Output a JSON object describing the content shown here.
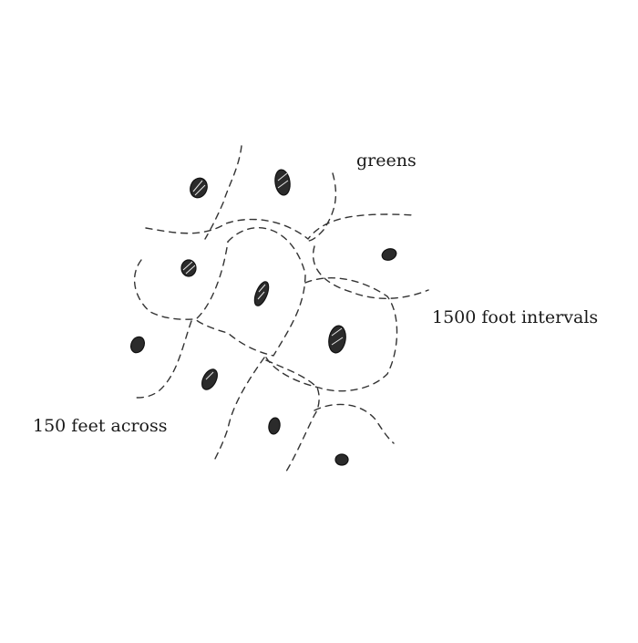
{
  "labels": {
    "greens": "greens",
    "intervals": "1500 foot intervals",
    "across": "150 feet across"
  },
  "colors": {
    "ink": "#1a1a1a",
    "background": "#ffffff"
  }
}
